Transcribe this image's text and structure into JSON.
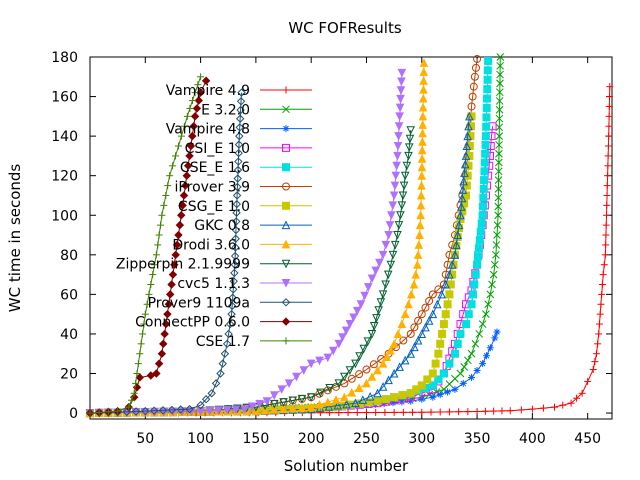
{
  "chart_data": {
    "type": "line",
    "title": "WC FOFResults",
    "xlabel": "Solution number",
    "ylabel": "WC time in seconds",
    "xlim": [
      0,
      472
    ],
    "ylim": [
      -3,
      180
    ],
    "x_ticks": [
      50,
      100,
      150,
      200,
      250,
      300,
      350,
      400,
      450
    ],
    "y_ticks": [
      0,
      20,
      40,
      60,
      80,
      100,
      120,
      140,
      160,
      180
    ],
    "grid": false,
    "legend_position": "top-left",
    "series": [
      {
        "name": "Vampire 4.9",
        "color": "#ff0000",
        "marker": "plus",
        "points": [
          [
            0,
            0
          ],
          [
            200,
            0.2
          ],
          [
            300,
            0.4
          ],
          [
            350,
            0.8
          ],
          [
            380,
            1.2
          ],
          [
            400,
            2
          ],
          [
            420,
            3
          ],
          [
            435,
            5
          ],
          [
            445,
            10
          ],
          [
            450,
            16
          ],
          [
            455,
            22
          ],
          [
            458,
            30
          ],
          [
            460,
            40
          ],
          [
            462,
            55
          ],
          [
            464,
            70
          ],
          [
            466,
            80
          ],
          [
            467,
            100
          ],
          [
            468,
            120
          ],
          [
            469,
            140
          ],
          [
            470,
            165
          ]
        ]
      },
      {
        "name": "E 3.2.0",
        "color": "#00a000",
        "marker": "x",
        "points": [
          [
            0,
            0
          ],
          [
            100,
            1
          ],
          [
            200,
            3
          ],
          [
            260,
            5
          ],
          [
            300,
            8
          ],
          [
            320,
            12
          ],
          [
            335,
            20
          ],
          [
            345,
            30
          ],
          [
            352,
            40
          ],
          [
            358,
            50
          ],
          [
            362,
            60
          ],
          [
            365,
            70
          ],
          [
            367,
            80
          ],
          [
            369,
            100
          ],
          [
            370,
            140
          ],
          [
            371,
            180
          ]
        ]
      },
      {
        "name": "Vampire 4.8",
        "color": "#0060ff",
        "marker": "asterisk",
        "points": [
          [
            0,
            0
          ],
          [
            100,
            0.5
          ],
          [
            200,
            2
          ],
          [
            250,
            4
          ],
          [
            290,
            6
          ],
          [
            310,
            8
          ],
          [
            330,
            12
          ],
          [
            345,
            18
          ],
          [
            355,
            25
          ],
          [
            362,
            33
          ],
          [
            366,
            38
          ],
          [
            368,
            41
          ]
        ]
      },
      {
        "name": "CSI_E 1.0",
        "color": "#ff00ff",
        "marker": "square",
        "points": [
          [
            0,
            0
          ],
          [
            150,
            1
          ],
          [
            220,
            3
          ],
          [
            260,
            5
          ],
          [
            290,
            8
          ],
          [
            310,
            12
          ],
          [
            320,
            20
          ],
          [
            330,
            35
          ],
          [
            335,
            45
          ],
          [
            340,
            55
          ],
          [
            345,
            62
          ],
          [
            350,
            75
          ],
          [
            355,
            95
          ],
          [
            358,
            110
          ],
          [
            361,
            125
          ],
          [
            363,
            140
          ],
          [
            364,
            145
          ]
        ]
      },
      {
        "name": "CSE_E 1.6",
        "color": "#00e0e0",
        "marker": "filled-square",
        "points": [
          [
            0,
            0
          ],
          [
            150,
            1
          ],
          [
            220,
            3
          ],
          [
            260,
            6
          ],
          [
            290,
            10
          ],
          [
            310,
            14
          ],
          [
            320,
            20
          ],
          [
            325,
            25
          ],
          [
            330,
            30
          ],
          [
            335,
            40
          ],
          [
            340,
            45
          ],
          [
            345,
            55
          ],
          [
            350,
            75
          ],
          [
            355,
            100
          ],
          [
            358,
            140
          ],
          [
            360,
            178
          ]
        ]
      },
      {
        "name": "iProver 3.9",
        "color": "#c04000",
        "marker": "circle",
        "points": [
          [
            0,
            0
          ],
          [
            100,
            1
          ],
          [
            150,
            3
          ],
          [
            200,
            8
          ],
          [
            230,
            15
          ],
          [
            250,
            22
          ],
          [
            270,
            30
          ],
          [
            290,
            40
          ],
          [
            300,
            50
          ],
          [
            310,
            60
          ],
          [
            320,
            65
          ],
          [
            325,
            80
          ],
          [
            330,
            90
          ],
          [
            335,
            105
          ],
          [
            340,
            120
          ],
          [
            343,
            140
          ],
          [
            345,
            155
          ],
          [
            348,
            170
          ],
          [
            350,
            179
          ]
        ]
      },
      {
        "name": "CSG_E 1.0",
        "color": "#c8c800",
        "marker": "filled-square",
        "points": [
          [
            0,
            0
          ],
          [
            150,
            1
          ],
          [
            220,
            3
          ],
          [
            260,
            6
          ],
          [
            290,
            10
          ],
          [
            300,
            14
          ],
          [
            310,
            20
          ],
          [
            315,
            30
          ],
          [
            320,
            45
          ],
          [
            325,
            60
          ],
          [
            330,
            80
          ],
          [
            335,
            98
          ],
          [
            340,
            110
          ],
          [
            343,
            130
          ],
          [
            345,
            150
          ]
        ]
      },
      {
        "name": "GKC 0.8",
        "color": "#0060c0",
        "marker": "triangle",
        "points": [
          [
            0,
            0
          ],
          [
            150,
            1
          ],
          [
            200,
            2
          ],
          [
            240,
            5
          ],
          [
            260,
            10
          ],
          [
            275,
            20
          ],
          [
            290,
            30
          ],
          [
            300,
            40
          ],
          [
            310,
            50
          ],
          [
            318,
            60
          ],
          [
            325,
            70
          ],
          [
            330,
            80
          ],
          [
            335,
            100
          ],
          [
            340,
            130
          ],
          [
            343,
            150
          ]
        ]
      },
      {
        "name": "Drodi 3.6.0",
        "color": "#ffb000",
        "marker": "filled-triangle",
        "points": [
          [
            0,
            0
          ],
          [
            150,
            1
          ],
          [
            200,
            3
          ],
          [
            230,
            8
          ],
          [
            250,
            15
          ],
          [
            265,
            25
          ],
          [
            275,
            35
          ],
          [
            282,
            45
          ],
          [
            288,
            55
          ],
          [
            293,
            65
          ],
          [
            296,
            75
          ],
          [
            298,
            90
          ],
          [
            299,
            100
          ],
          [
            300,
            120
          ],
          [
            301,
            150
          ],
          [
            302,
            177
          ]
        ]
      },
      {
        "name": "Zipperpin 2.1.9999",
        "color": "#006030",
        "marker": "triangle-down",
        "points": [
          [
            0,
            0
          ],
          [
            100,
            1
          ],
          [
            150,
            3
          ],
          [
            200,
            8
          ],
          [
            225,
            15
          ],
          [
            240,
            25
          ],
          [
            255,
            40
          ],
          [
            265,
            60
          ],
          [
            272,
            75
          ],
          [
            278,
            90
          ],
          [
            282,
            105
          ],
          [
            285,
            120
          ],
          [
            288,
            130
          ],
          [
            290,
            143
          ]
        ]
      },
      {
        "name": "cvc5 1.1.3",
        "color": "#b070ff",
        "marker": "filled-triangle-down",
        "points": [
          [
            0,
            0
          ],
          [
            100,
            1
          ],
          [
            140,
            2
          ],
          [
            160,
            6
          ],
          [
            180,
            15
          ],
          [
            200,
            25
          ],
          [
            215,
            28
          ],
          [
            225,
            35
          ],
          [
            235,
            45
          ],
          [
            245,
            55
          ],
          [
            255,
            68
          ],
          [
            265,
            80
          ],
          [
            270,
            90
          ],
          [
            275,
            110
          ],
          [
            278,
            130
          ],
          [
            280,
            150
          ],
          [
            282,
            172
          ]
        ]
      },
      {
        "name": "Prover9 1109a",
        "color": "#205070",
        "marker": "diamond",
        "points": [
          [
            0,
            0
          ],
          [
            50,
            1
          ],
          [
            90,
            2
          ],
          [
            100,
            4
          ],
          [
            110,
            10
          ],
          [
            118,
            20
          ],
          [
            124,
            35
          ],
          [
            128,
            50
          ],
          [
            131,
            75
          ],
          [
            133,
            110
          ],
          [
            135,
            140
          ],
          [
            137,
            162
          ]
        ]
      },
      {
        "name": "ConnectPP 0.6.0",
        "color": "#800000",
        "marker": "filled-diamond",
        "points": [
          [
            0,
            0
          ],
          [
            25,
            1
          ],
          [
            35,
            3
          ],
          [
            40,
            8
          ],
          [
            45,
            18
          ],
          [
            55,
            19
          ],
          [
            60,
            20
          ],
          [
            65,
            30
          ],
          [
            70,
            50
          ],
          [
            75,
            70
          ],
          [
            80,
            90
          ],
          [
            85,
            110
          ],
          [
            90,
            130
          ],
          [
            95,
            150
          ],
          [
            100,
            162
          ],
          [
            105,
            168
          ]
        ]
      },
      {
        "name": "CSE 1.7",
        "color": "#408000",
        "marker": "plus",
        "points": [
          [
            0,
            0
          ],
          [
            25,
            1
          ],
          [
            35,
            3
          ],
          [
            40,
            10
          ],
          [
            45,
            30
          ],
          [
            50,
            50
          ],
          [
            55,
            65
          ],
          [
            60,
            80
          ],
          [
            65,
            100
          ],
          [
            72,
            120
          ],
          [
            80,
            135
          ],
          [
            88,
            150
          ],
          [
            95,
            162
          ],
          [
            100,
            170
          ]
        ]
      }
    ]
  }
}
